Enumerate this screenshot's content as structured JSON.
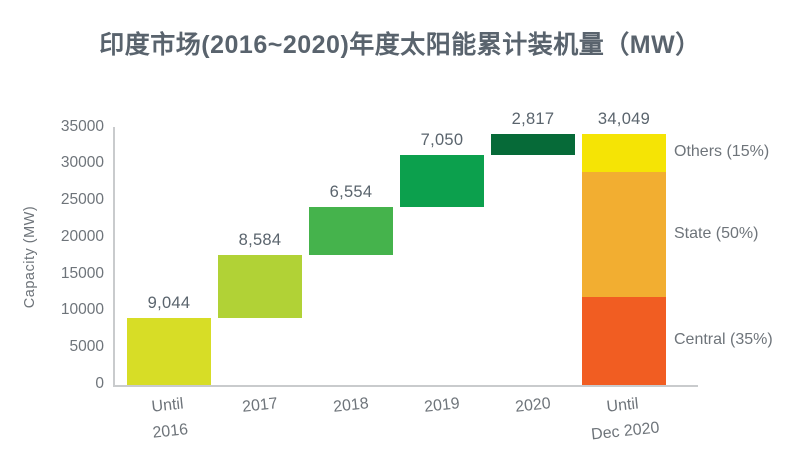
{
  "title": "印度市场(2016~2020)年度太阳能累计装机量（MW）",
  "palette": {
    "title_text": "#59636d",
    "axis_text": "#6e747a",
    "data_label_text": "#5a646d",
    "axis_line": "#c9cbcd"
  },
  "chart_data": {
    "type": "waterfall",
    "title": "印度市场(2016~2020)年度太阳能累计装机量（MW）",
    "xlabel": "",
    "ylabel": "Capacity (MW)",
    "ylim": [
      0,
      35000
    ],
    "yticks": [
      0,
      5000,
      10000,
      15000,
      20000,
      25000,
      30000,
      35000
    ],
    "grid": "off",
    "legend": "none",
    "categories": [
      "Until 2016",
      "2017",
      "2018",
      "2019",
      "2020",
      "Until Dec 2020"
    ],
    "bars": [
      {
        "tick_lines": [
          "Until",
          "2016"
        ],
        "value": 9044,
        "label": "9,044",
        "color": "#d7dd26"
      },
      {
        "tick_lines": [
          "2017"
        ],
        "value": 8584,
        "label": "8,584",
        "color": "#b1d236"
      },
      {
        "tick_lines": [
          "2018"
        ],
        "value": 6554,
        "label": "6,554",
        "color": "#45b34c"
      },
      {
        "tick_lines": [
          "2019"
        ],
        "value": 7050,
        "label": "7,050",
        "color": "#0ca04d"
      },
      {
        "tick_lines": [
          "2020"
        ],
        "value": 2817,
        "label": "2,817",
        "color": "#066a38"
      }
    ],
    "total_bar": {
      "tick_lines": [
        "Until",
        "Dec 2020"
      ],
      "value": 34049,
      "label": "34,049",
      "segments": [
        {
          "name": "Central (35%)",
          "pct": 35,
          "color": "#f15d22"
        },
        {
          "name": "State (50%)",
          "pct": 50,
          "color": "#f2ae31"
        },
        {
          "name": "Others (15%)",
          "pct": 15,
          "color": "#f5e405"
        }
      ]
    }
  }
}
